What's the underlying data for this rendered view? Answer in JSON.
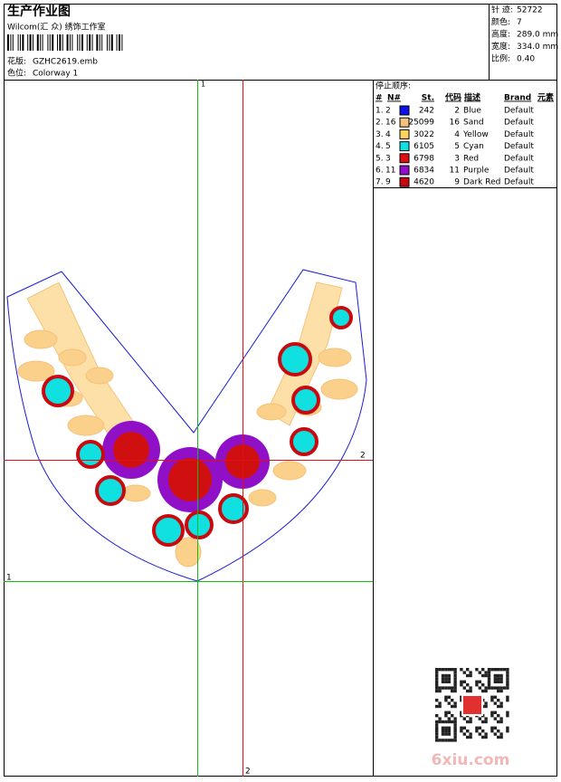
{
  "header": {
    "title": "生产作业图",
    "company": "Wilcom(汇 众) 绣饰工作室",
    "design_label": "花版:",
    "design": "GZHC2619.emb",
    "colorway_label": "色位:",
    "colorway": "Colorway 1"
  },
  "stats": [
    {
      "label": "针 迹:",
      "value": "52722"
    },
    {
      "label": "颜色:",
      "value": "7"
    },
    {
      "label": "高度:",
      "value": "289.0 mm"
    },
    {
      "label": "宽度:",
      "value": "334.0 mm"
    },
    {
      "label": "比例:",
      "value": "0.40"
    }
  ],
  "stop_sequence": {
    "title": "停止顺序:",
    "columns": [
      "#",
      "N#",
      "St.",
      "代码",
      "描述",
      "Brand",
      "元素"
    ],
    "rows": [
      {
        "num": "1.",
        "n": "2",
        "color": "#1010e8",
        "st": "242",
        "code": "2",
        "desc": "Blue",
        "brand": "Default"
      },
      {
        "num": "2.",
        "n": "16",
        "color": "#f4c27a",
        "st": "25099",
        "code": "16",
        "desc": "Sand",
        "brand": "Default"
      },
      {
        "num": "3.",
        "n": "4",
        "color": "#ffd45a",
        "st": "3022",
        "code": "4",
        "desc": "Yellow",
        "brand": "Default"
      },
      {
        "num": "4.",
        "n": "5",
        "color": "#10e0e0",
        "st": "6105",
        "code": "5",
        "desc": "Cyan",
        "brand": "Default"
      },
      {
        "num": "5.",
        "n": "3",
        "color": "#e01010",
        "st": "6798",
        "code": "3",
        "desc": "Red",
        "brand": "Default"
      },
      {
        "num": "6.",
        "n": "11",
        "color": "#9010c8",
        "st": "6834",
        "code": "11",
        "desc": "Purple",
        "brand": "Default"
      },
      {
        "num": "7.",
        "n": "9",
        "color": "#c80a10",
        "st": "4620",
        "code": "9",
        "desc": "Dark Red",
        "brand": "Default"
      }
    ]
  },
  "guides": {
    "top": "1",
    "right": "2",
    "left": "1",
    "bottom": "2"
  },
  "watermark": "6xiu.com"
}
